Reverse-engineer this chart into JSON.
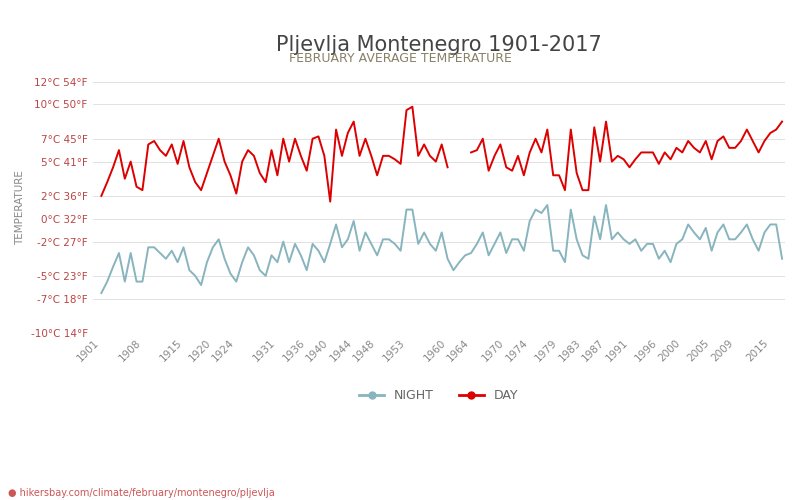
{
  "title": "Pljevlja Montenegro 1901-2017",
  "subtitle": "FEBRUARY AVERAGE TEMPERATURE",
  "ylabel": "TEMPERATURE",
  "url_text": "hikersbay.com/climate/february/montenegro/pljevlja",
  "years": [
    1901,
    1902,
    1903,
    1904,
    1905,
    1906,
    1907,
    1908,
    1909,
    1910,
    1911,
    1912,
    1913,
    1914,
    1915,
    1916,
    1917,
    1918,
    1919,
    1920,
    1921,
    1922,
    1923,
    1924,
    1925,
    1926,
    1927,
    1928,
    1929,
    1930,
    1931,
    1932,
    1933,
    1934,
    1935,
    1936,
    1937,
    1938,
    1939,
    1940,
    1941,
    1942,
    1943,
    1944,
    1945,
    1946,
    1947,
    1948,
    1949,
    1950,
    1951,
    1952,
    1953,
    1954,
    1955,
    1956,
    1957,
    1958,
    1959,
    1960,
    1961,
    1962,
    1963,
    1964,
    1965,
    1966,
    1967,
    1968,
    1969,
    1970,
    1971,
    1972,
    1973,
    1974,
    1975,
    1976,
    1977,
    1978,
    1979,
    1980,
    1981,
    1982,
    1983,
    1984,
    1985,
    1986,
    1987,
    1988,
    1989,
    1990,
    1991,
    1992,
    1993,
    1994,
    1995,
    1996,
    1997,
    1998,
    1999,
    2000,
    2001,
    2002,
    2003,
    2004,
    2005,
    2006,
    2007,
    2008,
    2009,
    2010,
    2011,
    2012,
    2013,
    2014,
    2015,
    2016,
    2017
  ],
  "day_temps": [
    2.0,
    3.2,
    4.5,
    6.0,
    3.5,
    5.0,
    2.8,
    2.5,
    6.5,
    6.8,
    6.0,
    5.5,
    6.5,
    4.8,
    6.8,
    4.5,
    3.2,
    2.5,
    4.0,
    5.5,
    7.0,
    5.0,
    3.8,
    2.2,
    5.0,
    6.0,
    5.5,
    4.0,
    3.2,
    6.0,
    3.8,
    7.0,
    5.0,
    7.0,
    5.5,
    4.2,
    7.0,
    7.2,
    5.5,
    1.5,
    7.8,
    5.5,
    7.5,
    8.5,
    5.5,
    7.0,
    5.5,
    3.8,
    5.5,
    5.5,
    5.2,
    4.8,
    9.5,
    9.8,
    5.5,
    6.5,
    5.5,
    5.0,
    6.5,
    4.5,
    null,
    null,
    null,
    5.8,
    6.0,
    7.0,
    4.2,
    5.5,
    6.5,
    4.5,
    4.2,
    5.5,
    3.8,
    5.8,
    7.0,
    5.8,
    7.8,
    3.8,
    3.8,
    2.5,
    7.8,
    4.0,
    2.5,
    2.5,
    8.0,
    5.0,
    8.5,
    5.0,
    5.5,
    5.2,
    4.5,
    5.2,
    5.8,
    5.8,
    5.8,
    4.8,
    5.8,
    5.2,
    6.2,
    5.8,
    6.8,
    6.2,
    5.8,
    6.8,
    5.2,
    6.8,
    7.2,
    6.2,
    6.2,
    6.8,
    7.8,
    6.8,
    5.8,
    6.8,
    7.5,
    7.8,
    8.5
  ],
  "night_temps": [
    -6.5,
    -5.5,
    -4.2,
    -3.0,
    -5.5,
    -3.0,
    -5.5,
    -5.5,
    -2.5,
    -2.5,
    -3.0,
    -3.5,
    -2.8,
    -3.8,
    -2.5,
    -4.5,
    -5.0,
    -5.8,
    -3.8,
    -2.5,
    -1.8,
    -3.5,
    -4.8,
    -5.5,
    -3.8,
    -2.5,
    -3.2,
    -4.5,
    -5.0,
    -3.2,
    -3.8,
    -2.0,
    -3.8,
    -2.2,
    -3.2,
    -4.5,
    -2.2,
    -2.8,
    -3.8,
    -2.2,
    -0.5,
    -2.5,
    -1.8,
    -0.2,
    -2.8,
    -1.2,
    -2.2,
    -3.2,
    -1.8,
    -1.8,
    -2.2,
    -2.8,
    0.8,
    0.8,
    -2.2,
    -1.2,
    -2.2,
    -2.8,
    -1.2,
    -3.5,
    -4.5,
    -3.8,
    -3.2,
    -3.0,
    -2.2,
    -1.2,
    -3.2,
    -2.2,
    -1.2,
    -3.0,
    -1.8,
    -1.8,
    -2.8,
    -0.2,
    0.8,
    0.5,
    1.2,
    -2.8,
    -2.8,
    -3.8,
    0.8,
    -1.8,
    -3.2,
    -3.5,
    0.2,
    -1.8,
    1.2,
    -1.8,
    -1.2,
    -1.8,
    -2.2,
    -1.8,
    -2.8,
    -2.2,
    -2.2,
    -3.5,
    -2.8,
    -3.8,
    -2.2,
    -1.8,
    -0.5,
    -1.2,
    -1.8,
    -0.8,
    -2.8,
    -1.2,
    -0.5,
    -1.8,
    -1.8,
    -1.2,
    -0.5,
    -1.8,
    -2.8,
    -1.2,
    -0.5,
    -0.5,
    -3.5
  ],
  "day_color": "#dd0000",
  "night_color": "#88b4be",
  "background_color": "#ffffff",
  "grid_color": "#dddddd",
  "title_color": "#444444",
  "subtitle_color": "#888066",
  "ylabel_color": "#888888",
  "ytick_color": "#bb4444",
  "xtick_color": "#888888",
  "ylim": [
    -10,
    12
  ],
  "yticks_celsius": [
    -10,
    -7,
    -5,
    -2,
    0,
    2,
    5,
    7,
    10,
    12
  ],
  "yticks_fahrenheit": [
    14,
    18,
    23,
    27,
    32,
    36,
    41,
    45,
    50,
    54
  ],
  "xtick_years": [
    1901,
    1908,
    1915,
    1920,
    1924,
    1931,
    1936,
    1940,
    1944,
    1948,
    1953,
    1960,
    1964,
    1970,
    1974,
    1979,
    1983,
    1987,
    1991,
    1996,
    2000,
    2005,
    2009,
    2015
  ],
  "legend_night_label": "NIGHT",
  "legend_day_label": "DAY",
  "line_width": 1.4,
  "title_fontsize": 15,
  "subtitle_fontsize": 9,
  "ylabel_fontsize": 7.5,
  "tick_fontsize": 7.5,
  "legend_fontsize": 9,
  "url_fontsize": 7
}
